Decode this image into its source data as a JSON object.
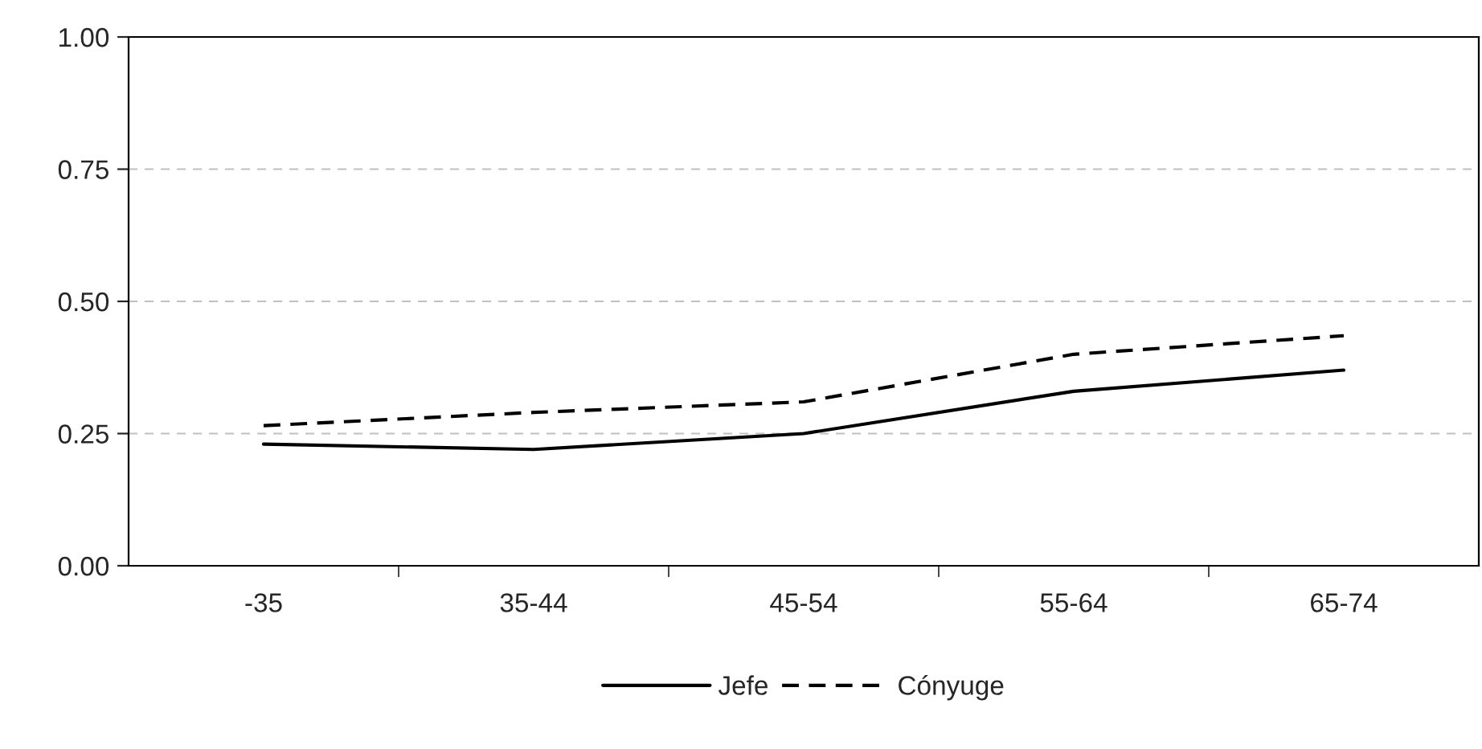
{
  "chart_data": {
    "type": "line",
    "categories": [
      "-35",
      "35-44",
      "45-54",
      "55-64",
      "65-74"
    ],
    "series": [
      {
        "name": "Jefe",
        "color": "#000000",
        "line_style": "solid",
        "values": [
          0.23,
          0.22,
          0.25,
          0.33,
          0.37
        ]
      },
      {
        "name": "Cónyuge",
        "color": "#000000",
        "line_style": "dashed",
        "values": [
          0.265,
          0.29,
          0.31,
          0.4,
          0.435
        ]
      }
    ],
    "ylim": [
      0,
      1
    ],
    "yticks": [
      {
        "value": 0,
        "label": "0.00"
      },
      {
        "value": 0.25,
        "label": "0.25"
      },
      {
        "value": 0.5,
        "label": "0.50"
      },
      {
        "value": 0.75,
        "label": "0.75"
      },
      {
        "value": 1,
        "label": "1.00"
      }
    ],
    "grid": "y",
    "legend": "bottom",
    "marker": "none"
  }
}
